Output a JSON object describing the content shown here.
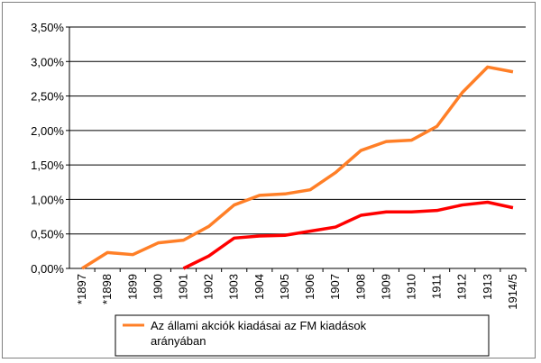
{
  "chart_data": {
    "type": "line",
    "categories": [
      "*1897",
      "*1898",
      "1899",
      "1900",
      "1901",
      "1902",
      "1903",
      "1904",
      "1905",
      "1906",
      "1907",
      "1908",
      "1909",
      "1910",
      "1911",
      "1912",
      "1913",
      "1914/5"
    ],
    "series": [
      {
        "name": "Az állami akciók kiadásai az FM kiadások arányában",
        "color": "#ff7f27",
        "values": [
          0.0,
          0.23,
          0.2,
          0.37,
          0.41,
          0.61,
          0.92,
          1.06,
          1.08,
          1.14,
          1.39,
          1.71,
          1.84,
          1.86,
          2.06,
          2.55,
          2.92,
          2.85
        ]
      },
      {
        "name": "",
        "color": "#ff0000",
        "values": [
          null,
          null,
          null,
          null,
          0.0,
          0.18,
          0.44,
          0.47,
          0.48,
          0.54,
          0.6,
          0.77,
          0.82,
          0.82,
          0.84,
          0.92,
          0.96,
          0.88
        ]
      }
    ],
    "y_ticks": [
      "0,00%",
      "0,50%",
      "1,00%",
      "1,50%",
      "2,00%",
      "2,50%",
      "3,00%",
      "3,50%"
    ],
    "ylim": [
      0,
      3.5
    ],
    "grid": true,
    "legend_position": "bottom",
    "legend_lines": [
      "Az állami akciók kiadásai az FM kiadások",
      "arányában"
    ]
  }
}
